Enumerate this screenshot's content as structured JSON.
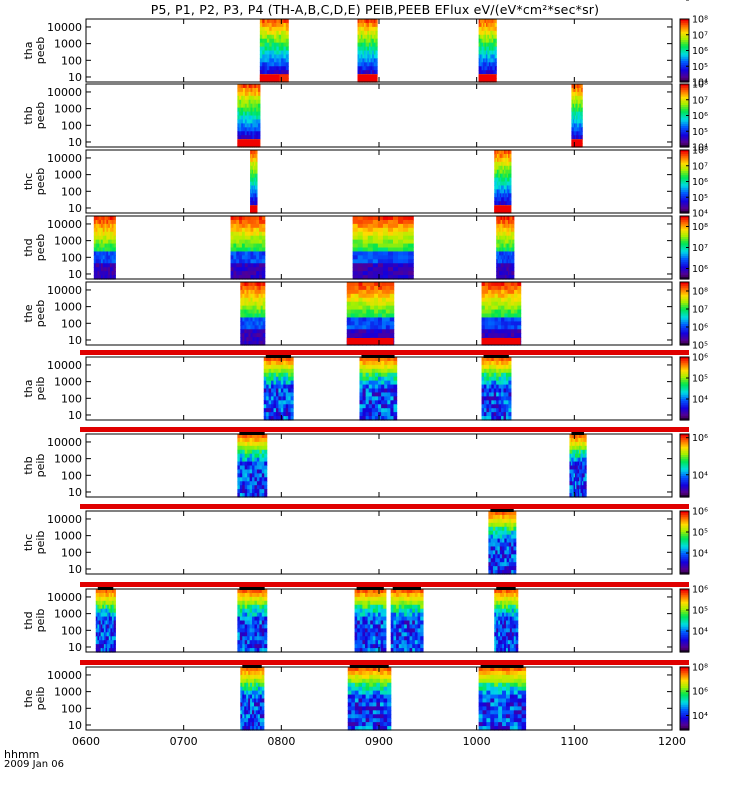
{
  "title": "P5, P1, P2, P3, P4 (TH-A,B,C,D,E) PEIB,PEEB EFlux eV/(eV*cm²*sec*sr)",
  "x_axis": {
    "row1": "hhmm",
    "row2": "2009 Jan 06"
  },
  "chart_data": {
    "type": "heatmap",
    "x_ticks": [
      "0600",
      "0700",
      "0800",
      "0900",
      "1000",
      "1100",
      "1200"
    ],
    "x_range_hours": [
      6,
      12
    ],
    "y_ticks": [
      "10",
      "100",
      "1000",
      "10000"
    ],
    "y_scale": "log",
    "panels": [
      {
        "label1": "tha",
        "label2": "peeb",
        "cb_ticks": [
          "10⁸",
          "10⁷",
          "10⁶",
          "10⁵",
          "10⁴"
        ],
        "cb_range": [
          4,
          8
        ],
        "spectrum": "electron",
        "blocks": [
          [
            7.78,
            8.07
          ],
          [
            8.78,
            8.98
          ],
          [
            10.02,
            10.2
          ]
        ],
        "bottom_bars": [
          [
            7.78,
            7.98
          ],
          [
            8.78,
            8.98
          ],
          [
            10.02,
            10.2
          ]
        ]
      },
      {
        "label1": "thb",
        "label2": "peeb",
        "cb_ticks": [
          "10⁸",
          "10⁷",
          "10⁶",
          "10⁵",
          "10⁴"
        ],
        "cb_range": [
          4,
          8
        ],
        "spectrum": "electron",
        "blocks": [
          [
            7.55,
            7.78
          ],
          [
            10.97,
            11.08
          ]
        ],
        "bottom_bars": [
          [
            7.55,
            7.78
          ],
          [
            10.97,
            11.08
          ]
        ]
      },
      {
        "label1": "thc",
        "label2": "peeb",
        "cb_ticks": [
          "10⁸",
          "10⁷",
          "10⁶",
          "10⁵",
          "10⁴"
        ],
        "cb_range": [
          4,
          8
        ],
        "spectrum": "electron",
        "blocks": [
          [
            7.68,
            7.75
          ],
          [
            10.18,
            10.35
          ]
        ],
        "bottom_bars": [
          [
            7.68,
            7.75
          ],
          [
            10.18,
            10.35
          ]
        ]
      },
      {
        "label1": "thd",
        "label2": "peeb",
        "cb_ticks": [
          "10⁸",
          "10⁷",
          "10⁶"
        ],
        "cb_range": [
          5.5,
          8.5
        ],
        "spectrum": "electron-dark",
        "blocks": [
          [
            6.08,
            6.3
          ],
          [
            7.48,
            7.83
          ],
          [
            8.73,
            9.35
          ],
          [
            10.2,
            10.38
          ]
        ],
        "bottom_bars": []
      },
      {
        "label1": "the",
        "label2": "peeb",
        "cb_ticks": [
          "10⁸",
          "10⁷",
          "10⁶",
          "10⁵"
        ],
        "cb_range": [
          5,
          8.5
        ],
        "spectrum": "electron-dark",
        "blocks": [
          [
            7.58,
            7.83
          ],
          [
            8.67,
            9.15
          ],
          [
            10.05,
            10.45
          ]
        ],
        "bottom_bars": [
          [
            8.67,
            9.15
          ],
          [
            10.05,
            10.45
          ]
        ]
      },
      {
        "label1": "tha",
        "label2": "peib",
        "cb_ticks": [
          "10⁶",
          "10⁵",
          "10⁴",
          "10⁳"
        ],
        "cb_range": [
          3,
          6
        ],
        "spectrum": "ion",
        "blocks": [
          [
            7.82,
            8.12
          ],
          [
            8.8,
            9.18
          ],
          [
            10.05,
            10.35
          ]
        ],
        "top_bar": true
      },
      {
        "label1": "thb",
        "label2": "peib",
        "cb_ticks": [
          "10⁶",
          "10⁴",
          "10⁳"
        ],
        "cb_range": [
          2.8,
          6.2
        ],
        "spectrum": "ion",
        "blocks": [
          [
            7.55,
            7.85
          ],
          [
            10.95,
            11.12
          ]
        ],
        "top_bar": true
      },
      {
        "label1": "thc",
        "label2": "peib",
        "cb_ticks": [
          "10⁶",
          "10⁵",
          "10⁴",
          "10⁳"
        ],
        "cb_range": [
          3,
          6
        ],
        "spectrum": "ion",
        "blocks": [
          [
            10.12,
            10.4
          ]
        ],
        "top_bar": true
      },
      {
        "label1": "thd",
        "label2": "peib",
        "cb_ticks": [
          "10⁶",
          "10⁵",
          "10⁴",
          "10⁳"
        ],
        "cb_range": [
          3,
          6
        ],
        "spectrum": "ion",
        "blocks": [
          [
            6.1,
            6.3
          ],
          [
            7.55,
            7.85
          ],
          [
            8.75,
            9.07
          ],
          [
            9.12,
            9.45
          ],
          [
            10.18,
            10.42
          ]
        ],
        "top_bar": true
      },
      {
        "label1": "the",
        "label2": "peib",
        "cb_ticks": [
          "10⁸",
          "10⁶",
          "10⁴",
          "10⁳"
        ],
        "cb_range": [
          2.8,
          8
        ],
        "spectrum": "ion",
        "blocks": [
          [
            7.58,
            7.82
          ],
          [
            8.68,
            9.12
          ],
          [
            10.02,
            10.5
          ]
        ],
        "top_bar": true
      }
    ]
  }
}
